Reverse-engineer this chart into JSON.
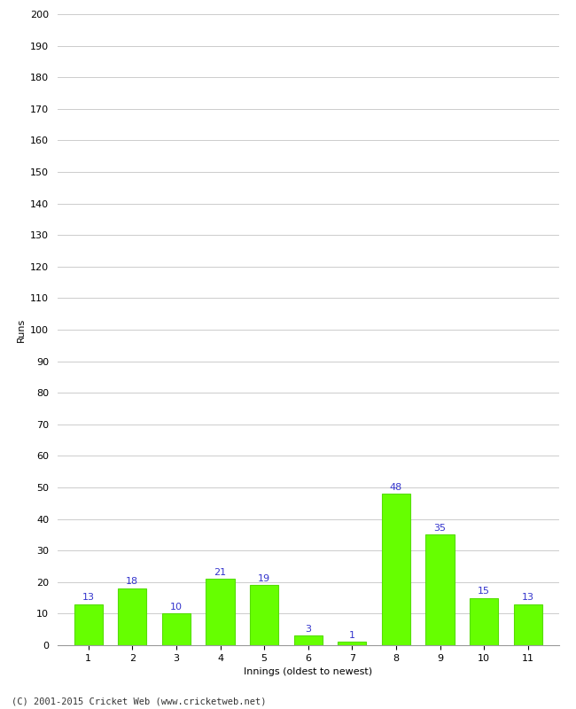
{
  "innings": [
    1,
    2,
    3,
    4,
    5,
    6,
    7,
    8,
    9,
    10,
    11
  ],
  "runs": [
    13,
    18,
    10,
    21,
    19,
    3,
    1,
    48,
    35,
    15,
    13
  ],
  "bar_color": "#66ff00",
  "bar_edge_color": "#55dd00",
  "label_color": "#3333cc",
  "xlabel": "Innings (oldest to newest)",
  "ylabel": "Runs",
  "ylim": [
    0,
    200
  ],
  "yticks": [
    0,
    10,
    20,
    30,
    40,
    50,
    60,
    70,
    80,
    90,
    100,
    110,
    120,
    130,
    140,
    150,
    160,
    170,
    180,
    190,
    200
  ],
  "grid_color": "#cccccc",
  "background_color": "#ffffff",
  "footer": "(C) 2001-2015 Cricket Web (www.cricketweb.net)"
}
